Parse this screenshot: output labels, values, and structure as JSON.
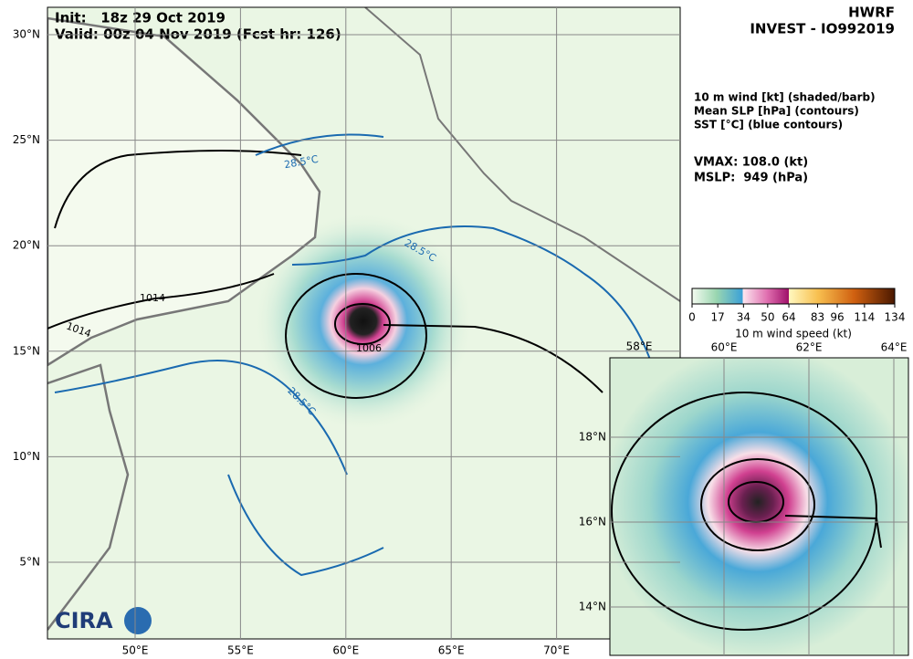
{
  "header": {
    "init": "Init:   18z 29 Oct 2019",
    "valid": "Valid: 00z 04 Nov 2019 (Fcst hr: 126)",
    "model": "HWRF",
    "storm": "INVEST - IO992019"
  },
  "legend": [
    "10 m wind [kt] (shaded/barb)",
    "Mean SLP [hPa] (contours)",
    "SST [°C] (blue contours)"
  ],
  "stats": [
    "VMAX: 108.0 (kt)",
    "MSLP:  949 (hPa)"
  ],
  "colorbar": {
    "range": [
      0,
      134
    ],
    "ticks": [
      0,
      17,
      34,
      50,
      64,
      83,
      96,
      114,
      134
    ],
    "label": "10 m wind speed (kt)"
  },
  "map": {
    "lat_labels": [
      "30°N",
      "25°N",
      "20°N",
      "15°N",
      "10°N",
      "5°N"
    ],
    "lon_labels": [
      "50°E",
      "55°E",
      "60°E",
      "65°E",
      "70°E"
    ]
  },
  "inset": {
    "lon_labels": [
      "58°E",
      "60°E",
      "62°E",
      "64°E"
    ],
    "lat_labels": [
      "18°N",
      "16°N",
      "14°N"
    ]
  },
  "contour_labels": [
    "1014",
    "1006",
    "1014",
    "28.5°C",
    "28.5°C",
    "28.5°C"
  ],
  "logo": "CIRA"
}
